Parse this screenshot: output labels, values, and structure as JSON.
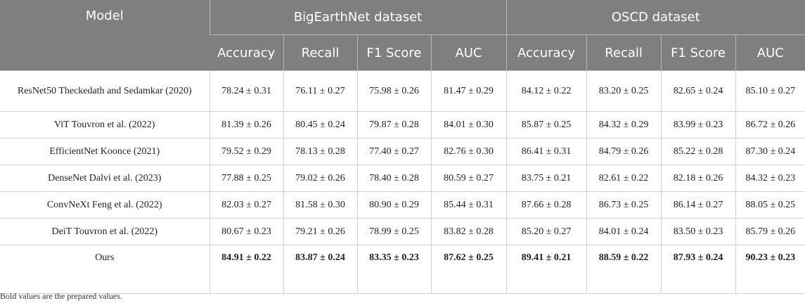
{
  "table": {
    "header": {
      "model": "Model",
      "groups": [
        "BigEarthNet dataset",
        "OSCD dataset"
      ],
      "metrics": [
        "Accuracy",
        "Recall",
        "F1 Score",
        "AUC",
        "Accuracy",
        "Recall",
        "F1 Score",
        "AUC"
      ]
    },
    "rows": [
      [
        "ResNet50 Theckedath and Sedamkar (2020)",
        "78.24 ± 0.31",
        "76.11 ± 0.27",
        "75.98 ± 0.26",
        "81.47 ± 0.29",
        "84.12 ± 0.22",
        "83.20 ± 0.25",
        "82.65 ± 0.24",
        "85.10 ± 0.27"
      ],
      [
        "ViT Touvron et al. (2022)",
        "81.39 ± 0.26",
        "80.45 ± 0.24",
        "79.87 ± 0.28",
        "84.01 ± 0.30",
        "85.87 ± 0.25",
        "84.32 ± 0.29",
        "83.99 ± 0.23",
        "86.72 ± 0.26"
      ],
      [
        "EfficientNet Koonce (2021)",
        "79.52 ± 0.29",
        "78.13 ± 0.28",
        "77.40 ± 0.27",
        "82.76 ± 0.30",
        "86.41 ± 0.31",
        "84.79 ± 0.26",
        "85.22 ± 0.28",
        "87.30 ± 0.24"
      ],
      [
        "DenseNet Dalvi et al. (2023)",
        "77.88 ± 0.25",
        "79.02 ± 0.26",
        "78.40 ± 0.28",
        "80.59 ± 0.27",
        "83.75 ± 0.21",
        "82.61 ± 0.22",
        "82.18 ± 0.26",
        "84.32 ± 0.23"
      ],
      [
        "ConvNeXt Feng et al. (2022)",
        "82.03 ± 0.27",
        "81.58 ± 0.30",
        "80.90 ± 0.29",
        "85.44 ± 0.31",
        "87.66 ± 0.28",
        "86.73 ± 0.25",
        "86.14 ± 0.27",
        "88.05 ± 0.25"
      ],
      [
        "DeiT Touvron et al. (2022)",
        "80.67 ± 0.23",
        "79.21 ± 0.26",
        "78.99 ± 0.25",
        "83.82 ± 0.28",
        "85.20 ± 0.27",
        "84.01 ± 0.24",
        "83.50 ± 0.23",
        "85.79 ± 0.26"
      ],
      [
        "Ours",
        "84.91 ± 0.22",
        "83.87 ± 0.24",
        "83.35 ± 0.23",
        "87.62 ± 0.25",
        "89.41 ± 0.21",
        "88.59 ± 0.22",
        "87.93 ± 0.24",
        "90.23 ± 0.23"
      ]
    ]
  },
  "footnote": "Bold values are the prepared values."
}
